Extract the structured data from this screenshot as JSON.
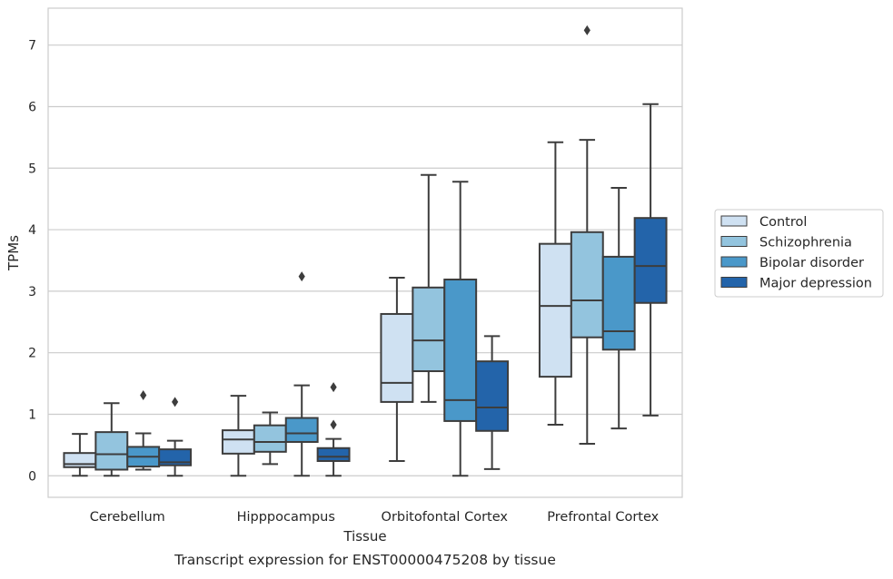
{
  "chart_data": {
    "type": "box",
    "xlabel": "Tissue",
    "ylabel": "TPMs",
    "caption": "Transcript expression for ENST00000475208 by tissue",
    "ylim": [
      -0.35,
      7.6
    ],
    "yticks": [
      0,
      1,
      2,
      3,
      4,
      5,
      6,
      7
    ],
    "grid": "horizontal",
    "legend_position": "right",
    "categories": [
      "Cerebellum",
      "Hipppocampus",
      "Orbitofontal Cortex",
      "Prefrontal Cortex"
    ],
    "series": [
      {
        "name": "Control",
        "color": "#cfe1f2",
        "boxes": [
          {
            "whisker_low": 0.0,
            "q1": 0.14,
            "median": 0.19,
            "q3": 0.37,
            "whisker_high": 0.68,
            "outliers": []
          },
          {
            "whisker_low": 0.0,
            "q1": 0.36,
            "median": 0.59,
            "q3": 0.74,
            "whisker_high": 1.3,
            "outliers": []
          },
          {
            "whisker_low": 0.24,
            "q1": 1.2,
            "median": 1.51,
            "q3": 2.63,
            "whisker_high": 3.22,
            "outliers": []
          },
          {
            "whisker_low": 0.83,
            "q1": 1.61,
            "median": 2.76,
            "q3": 3.77,
            "whisker_high": 5.42,
            "outliers": []
          }
        ]
      },
      {
        "name": "Schizophrenia",
        "color": "#93c4de",
        "boxes": [
          {
            "whisker_low": 0.0,
            "q1": 0.1,
            "median": 0.35,
            "q3": 0.71,
            "whisker_high": 1.18,
            "outliers": []
          },
          {
            "whisker_low": 0.19,
            "q1": 0.39,
            "median": 0.55,
            "q3": 0.82,
            "whisker_high": 1.03,
            "outliers": []
          },
          {
            "whisker_low": 1.2,
            "q1": 1.7,
            "median": 2.2,
            "q3": 3.06,
            "whisker_high": 4.89,
            "outliers": []
          },
          {
            "whisker_low": 0.52,
            "q1": 2.25,
            "median": 2.85,
            "q3": 3.96,
            "whisker_high": 5.46,
            "outliers": [
              7.24
            ]
          }
        ]
      },
      {
        "name": "Bipolar disorder",
        "color": "#4a98c9",
        "boxes": [
          {
            "whisker_low": 0.1,
            "q1": 0.15,
            "median": 0.31,
            "q3": 0.47,
            "whisker_high": 0.69,
            "outliers": [
              1.31
            ]
          },
          {
            "whisker_low": 0.0,
            "q1": 0.55,
            "median": 0.69,
            "q3": 0.94,
            "whisker_high": 1.47,
            "outliers": [
              3.24
            ]
          },
          {
            "whisker_low": 0.0,
            "q1": 0.89,
            "median": 1.23,
            "q3": 3.19,
            "whisker_high": 4.78,
            "outliers": []
          },
          {
            "whisker_low": 0.77,
            "q1": 2.05,
            "median": 2.35,
            "q3": 3.56,
            "whisker_high": 4.68,
            "outliers": []
          }
        ]
      },
      {
        "name": "Major depression",
        "color": "#2364aa",
        "boxes": [
          {
            "whisker_low": 0.0,
            "q1": 0.17,
            "median": 0.22,
            "q3": 0.43,
            "whisker_high": 0.57,
            "outliers": [
              1.2
            ]
          },
          {
            "whisker_low": 0.0,
            "q1": 0.24,
            "median": 0.31,
            "q3": 0.45,
            "whisker_high": 0.6,
            "outliers": [
              0.83,
              1.44
            ]
          },
          {
            "whisker_low": 0.11,
            "q1": 0.73,
            "median": 1.11,
            "q3": 1.86,
            "whisker_high": 2.27,
            "outliers": []
          },
          {
            "whisker_low": 0.98,
            "q1": 2.81,
            "median": 3.41,
            "q3": 4.19,
            "whisker_high": 6.04,
            "outliers": []
          }
        ]
      }
    ]
  }
}
